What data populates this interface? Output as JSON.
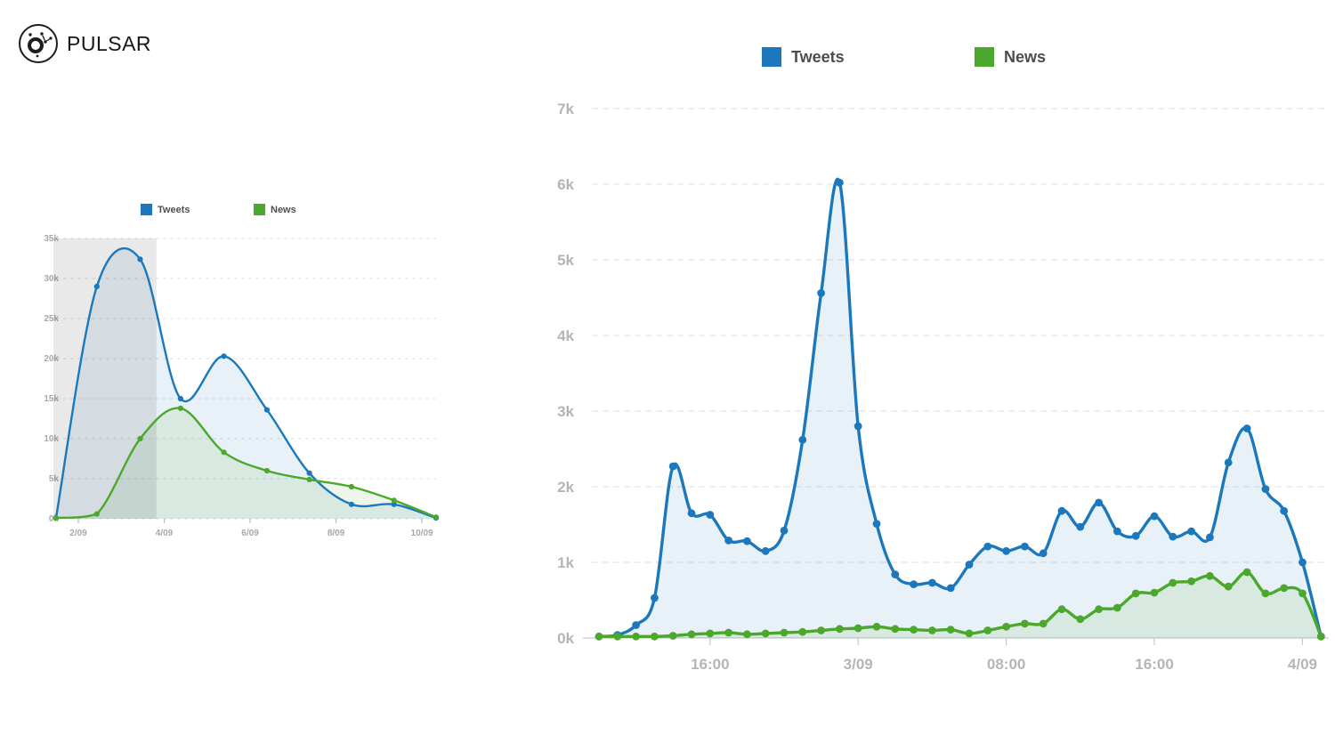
{
  "brand": {
    "name": "PULSAR",
    "logo_icon": "pulsar-constellation-icon"
  },
  "chart_data": [
    {
      "id": "overview",
      "type": "area",
      "title": "",
      "legend_position": "top",
      "grid": true,
      "unit": "thousands",
      "ylim": [
        0,
        35
      ],
      "yticks": [
        {
          "v": 0,
          "label": "0k"
        },
        {
          "v": 5,
          "label": "5k"
        },
        {
          "v": 10,
          "label": "10k"
        },
        {
          "v": 15,
          "label": "15k"
        },
        {
          "v": 20,
          "label": "20k"
        },
        {
          "v": 25,
          "label": "25k"
        },
        {
          "v": 30,
          "label": "30k"
        },
        {
          "v": 35,
          "label": "35k"
        }
      ],
      "x": [
        1.48,
        2.43,
        3.44,
        4.38,
        5.39,
        6.39,
        7.38,
        8.36,
        9.35,
        10.33
      ],
      "x_unit": "day of September",
      "xticks": [
        {
          "v": 2,
          "label": "2/09"
        },
        {
          "v": 4,
          "label": "4/09"
        },
        {
          "v": 6,
          "label": "6/09"
        },
        {
          "v": 8,
          "label": "8/09"
        },
        {
          "v": 10,
          "label": "10/09"
        }
      ],
      "series": [
        {
          "name": "Tweets",
          "color": "#1b78bc",
          "fill": "rgba(27,120,188,0.10)",
          "values": [
            0.1,
            29.0,
            32.4,
            15.0,
            20.3,
            13.6,
            5.7,
            1.8,
            1.8,
            0.1
          ]
        },
        {
          "name": "News",
          "color": "#4ca82c",
          "fill": "rgba(76,168,44,0.10)",
          "values": [
            0.1,
            0.6,
            10.0,
            13.8,
            8.3,
            6.0,
            4.9,
            4.0,
            2.3,
            0.2
          ]
        }
      ],
      "selection": {
        "x0": 1.42,
        "x1": 3.82,
        "color": "rgba(0,0,0,0.085)"
      }
    },
    {
      "id": "detail",
      "type": "area",
      "title": "",
      "legend_position": "top",
      "grid": true,
      "unit": "thousands",
      "ylim": [
        0,
        7
      ],
      "yticks": [
        {
          "v": 0,
          "label": "0k"
        },
        {
          "v": 1,
          "label": "1k"
        },
        {
          "v": 2,
          "label": "2k"
        },
        {
          "v": 3,
          "label": "3k"
        },
        {
          "v": 4,
          "label": "4k"
        },
        {
          "v": 5,
          "label": "5k"
        },
        {
          "v": 6,
          "label": "6k"
        },
        {
          "v": 7,
          "label": "7k"
        }
      ],
      "x": [
        0,
        1,
        2,
        3,
        4,
        5,
        6,
        7,
        8,
        9,
        10,
        11,
        12,
        13,
        14,
        15,
        16,
        17,
        18,
        19,
        20,
        21,
        22,
        23,
        24,
        25,
        26,
        27,
        28,
        29,
        30,
        31,
        32,
        33,
        34,
        35,
        36,
        37,
        38,
        39
      ],
      "x_unit": "hourly from 2/09 10:00 to 4/09 01:00",
      "xticks": [
        {
          "v": 6,
          "label": "16:00"
        },
        {
          "v": 14,
          "label": "3/09"
        },
        {
          "v": 22,
          "label": "08:00"
        },
        {
          "v": 30,
          "label": "16:00"
        },
        {
          "v": 38,
          "label": "4/09"
        }
      ],
      "series": [
        {
          "name": "Tweets",
          "color": "#1b78bc",
          "fill": "rgba(27,120,188,0.10)",
          "values": [
            0.02,
            0.04,
            0.17,
            0.53,
            2.27,
            1.65,
            1.63,
            1.29,
            1.28,
            1.15,
            1.42,
            2.62,
            4.56,
            6.02,
            2.8,
            1.51,
            0.84,
            0.71,
            0.73,
            0.66,
            0.97,
            1.21,
            1.15,
            1.21,
            1.12,
            1.68,
            1.47,
            1.79,
            1.41,
            1.35,
            1.61,
            1.34,
            1.41,
            1.33,
            2.32,
            2.77,
            1.97,
            1.68,
            1.0,
            0.02
          ]
        },
        {
          "name": "News",
          "color": "#4ca82c",
          "fill": "rgba(76,168,44,0.10)",
          "values": [
            0.02,
            0.02,
            0.02,
            0.02,
            0.03,
            0.05,
            0.06,
            0.07,
            0.05,
            0.06,
            0.07,
            0.08,
            0.1,
            0.12,
            0.13,
            0.15,
            0.12,
            0.11,
            0.1,
            0.11,
            0.06,
            0.1,
            0.15,
            0.19,
            0.19,
            0.38,
            0.25,
            0.38,
            0.4,
            0.59,
            0.6,
            0.73,
            0.75,
            0.82,
            0.68,
            0.87,
            0.59,
            0.66,
            0.59,
            0.02
          ]
        }
      ]
    }
  ]
}
